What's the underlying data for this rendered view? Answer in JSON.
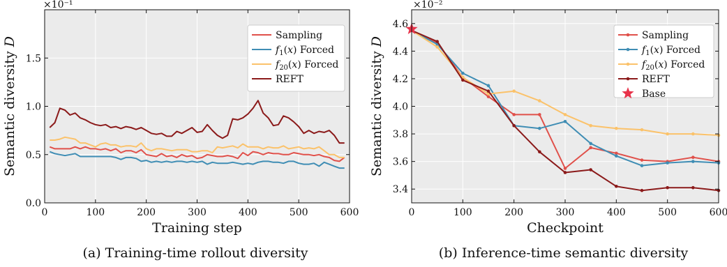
{
  "colors": {
    "sampling": "#e0504a",
    "f1": "#3f8db4",
    "f20": "#fbc26a",
    "reft": "#8b1a1a",
    "base": "#e8334a",
    "plot_bg": "#ebebeb"
  },
  "chart_data": [
    {
      "type": "line",
      "panel_caption": "(a) Training-time rollout diversity",
      "xlabel": "Training step",
      "ylabel": "Semantic diversity D",
      "scale_label": "×10⁻¹",
      "xlim": [
        0,
        600
      ],
      "ylim": [
        0.0,
        2.0
      ],
      "xticks": [
        0,
        100,
        200,
        300,
        400,
        500,
        600
      ],
      "xtick_labels": [
        "0",
        "100",
        "200",
        "300",
        "400",
        "500",
        "600"
      ],
      "yticks": [
        0.0,
        0.5,
        1.0,
        1.5
      ],
      "ytick_labels": [
        "0.0",
        "0.5",
        "1.0",
        "1.5"
      ],
      "grid": true,
      "legend_position": "top-right",
      "series": [
        {
          "name": "Sampling",
          "color_key": "sampling",
          "markers": false,
          "x": [
            10,
            20,
            30,
            40,
            50,
            60,
            70,
            80,
            90,
            100,
            110,
            120,
            130,
            140,
            150,
            160,
            170,
            180,
            190,
            200,
            210,
            220,
            230,
            240,
            250,
            260,
            270,
            280,
            290,
            300,
            310,
            320,
            330,
            340,
            350,
            360,
            370,
            380,
            390,
            400,
            410,
            420,
            430,
            440,
            450,
            460,
            470,
            480,
            490,
            500,
            510,
            520,
            530,
            540,
            550,
            560,
            570,
            580,
            590
          ],
          "y": [
            0.58,
            0.56,
            0.56,
            0.56,
            0.56,
            0.58,
            0.56,
            0.58,
            0.56,
            0.56,
            0.55,
            0.56,
            0.54,
            0.56,
            0.52,
            0.54,
            0.54,
            0.52,
            0.55,
            0.5,
            0.49,
            0.48,
            0.51,
            0.48,
            0.49,
            0.47,
            0.5,
            0.48,
            0.49,
            0.46,
            0.47,
            0.5,
            0.49,
            0.48,
            0.48,
            0.49,
            0.48,
            0.46,
            0.52,
            0.49,
            0.53,
            0.52,
            0.5,
            0.52,
            0.51,
            0.51,
            0.5,
            0.5,
            0.52,
            0.51,
            0.5,
            0.5,
            0.49,
            0.5,
            0.48,
            0.47,
            0.44,
            0.43,
            0.47
          ]
        },
        {
          "name": "f1(x) Forced",
          "color_key": "f1",
          "markers": false,
          "x": [
            10,
            20,
            30,
            40,
            50,
            60,
            70,
            80,
            90,
            100,
            110,
            120,
            130,
            140,
            150,
            160,
            170,
            180,
            190,
            200,
            210,
            220,
            230,
            240,
            250,
            260,
            270,
            280,
            290,
            300,
            310,
            320,
            330,
            340,
            350,
            360,
            370,
            380,
            390,
            400,
            410,
            420,
            430,
            440,
            450,
            460,
            470,
            480,
            490,
            500,
            510,
            520,
            530,
            540,
            550,
            560,
            570,
            580,
            590
          ],
          "y": [
            0.53,
            0.51,
            0.5,
            0.49,
            0.5,
            0.51,
            0.48,
            0.48,
            0.48,
            0.48,
            0.48,
            0.48,
            0.48,
            0.47,
            0.45,
            0.47,
            0.47,
            0.46,
            0.43,
            0.44,
            0.42,
            0.43,
            0.42,
            0.43,
            0.42,
            0.43,
            0.43,
            0.42,
            0.43,
            0.42,
            0.43,
            0.4,
            0.42,
            0.41,
            0.41,
            0.41,
            0.42,
            0.41,
            0.4,
            0.41,
            0.4,
            0.42,
            0.43,
            0.43,
            0.42,
            0.42,
            0.41,
            0.43,
            0.43,
            0.41,
            0.4,
            0.4,
            0.41,
            0.38,
            0.42,
            0.4,
            0.38,
            0.36,
            0.36
          ]
        },
        {
          "name": "f20(x) Forced",
          "color_key": "f20",
          "markers": false,
          "x": [
            10,
            20,
            30,
            40,
            50,
            60,
            70,
            80,
            90,
            100,
            110,
            120,
            130,
            140,
            150,
            160,
            170,
            180,
            190,
            200,
            210,
            220,
            230,
            240,
            250,
            260,
            270,
            280,
            290,
            300,
            310,
            320,
            330,
            340,
            350,
            360,
            370,
            380,
            390,
            400,
            410,
            420,
            430,
            440,
            450,
            460,
            470,
            480,
            490,
            500,
            510,
            520,
            530,
            540,
            550,
            560,
            570,
            580,
            590
          ],
          "y": [
            0.65,
            0.65,
            0.66,
            0.68,
            0.67,
            0.66,
            0.62,
            0.62,
            0.6,
            0.58,
            0.61,
            0.62,
            0.6,
            0.6,
            0.58,
            0.59,
            0.59,
            0.58,
            0.62,
            0.56,
            0.54,
            0.56,
            0.56,
            0.55,
            0.54,
            0.55,
            0.55,
            0.55,
            0.53,
            0.53,
            0.54,
            0.54,
            0.52,
            0.58,
            0.57,
            0.58,
            0.59,
            0.57,
            0.61,
            0.58,
            0.58,
            0.58,
            0.56,
            0.58,
            0.57,
            0.57,
            0.59,
            0.56,
            0.57,
            0.58,
            0.56,
            0.57,
            0.56,
            0.58,
            0.54,
            0.5,
            0.5,
            0.47,
            0.47
          ]
        },
        {
          "name": "REFT",
          "color_key": "reft",
          "markers": false,
          "x": [
            10,
            20,
            30,
            40,
            50,
            60,
            70,
            80,
            90,
            100,
            110,
            120,
            130,
            140,
            150,
            160,
            170,
            180,
            190,
            200,
            210,
            220,
            230,
            240,
            250,
            260,
            270,
            280,
            290,
            300,
            310,
            320,
            330,
            340,
            350,
            360,
            370,
            380,
            390,
            400,
            410,
            420,
            430,
            440,
            450,
            460,
            470,
            480,
            490,
            500,
            510,
            520,
            530,
            540,
            550,
            560,
            570,
            580,
            590
          ],
          "y": [
            0.78,
            0.83,
            0.98,
            0.96,
            0.91,
            0.93,
            0.88,
            0.86,
            0.83,
            0.81,
            0.8,
            0.81,
            0.78,
            0.79,
            0.77,
            0.79,
            0.78,
            0.76,
            0.78,
            0.75,
            0.72,
            0.71,
            0.72,
            0.69,
            0.69,
            0.74,
            0.72,
            0.75,
            0.78,
            0.73,
            0.74,
            0.81,
            0.75,
            0.7,
            0.67,
            0.7,
            0.87,
            0.86,
            0.88,
            0.92,
            0.98,
            1.06,
            0.93,
            0.88,
            0.8,
            0.81,
            0.9,
            0.88,
            0.84,
            0.79,
            0.72,
            0.75,
            0.72,
            0.74,
            0.73,
            0.75,
            0.7,
            0.62,
            0.62
          ]
        }
      ]
    },
    {
      "type": "line",
      "panel_caption": "(b) Inference-time semantic diversity",
      "xlabel": "Checkpoint",
      "ylabel": "Semantic diversity D",
      "scale_label": "×10⁻²",
      "xlim": [
        0,
        600
      ],
      "ylim": [
        3.3,
        4.7
      ],
      "xticks": [
        0,
        100,
        200,
        300,
        400,
        500,
        600
      ],
      "xtick_labels": [
        "0",
        "100",
        "200",
        "300",
        "400",
        "500",
        "600"
      ],
      "yticks": [
        3.4,
        3.6,
        3.8,
        4.0,
        4.2,
        4.4,
        4.6
      ],
      "ytick_labels": [
        "3.4",
        "3.6",
        "3.8",
        "4.0",
        "4.2",
        "4.4",
        "4.6"
      ],
      "grid": true,
      "legend_position": "top-right",
      "base_point": {
        "name": "Base",
        "x": 0,
        "y": 4.56,
        "color_key": "base"
      },
      "series": [
        {
          "name": "Sampling",
          "color_key": "sampling",
          "markers": true,
          "x": [
            0,
            50,
            100,
            150,
            200,
            250,
            300,
            350,
            400,
            450,
            500,
            550,
            600
          ],
          "y": [
            4.55,
            4.46,
            4.21,
            4.07,
            3.94,
            3.94,
            3.55,
            3.7,
            3.66,
            3.61,
            3.6,
            3.63,
            3.6
          ]
        },
        {
          "name": "f1(x) Forced",
          "color_key": "f1",
          "markers": true,
          "x": [
            0,
            50,
            100,
            150,
            200,
            250,
            300,
            350,
            400,
            450,
            500,
            550,
            600
          ],
          "y": [
            4.55,
            4.45,
            4.24,
            4.15,
            3.86,
            3.84,
            3.89,
            3.73,
            3.64,
            3.57,
            3.59,
            3.6,
            3.59
          ]
        },
        {
          "name": "f20(x) Forced",
          "color_key": "f20",
          "markers": true,
          "x": [
            0,
            50,
            100,
            150,
            200,
            250,
            300,
            350,
            400,
            450,
            500,
            550,
            600
          ],
          "y": [
            4.55,
            4.43,
            4.21,
            4.09,
            4.11,
            4.04,
            3.94,
            3.86,
            3.84,
            3.83,
            3.8,
            3.8,
            3.79
          ]
        },
        {
          "name": "REFT",
          "color_key": "reft",
          "markers": true,
          "x": [
            0,
            50,
            100,
            150,
            200,
            250,
            300,
            350,
            400,
            450,
            500,
            550,
            600
          ],
          "y": [
            4.55,
            4.47,
            4.19,
            4.11,
            3.86,
            3.67,
            3.52,
            3.54,
            3.42,
            3.39,
            3.41,
            3.41,
            3.39
          ]
        }
      ]
    }
  ]
}
